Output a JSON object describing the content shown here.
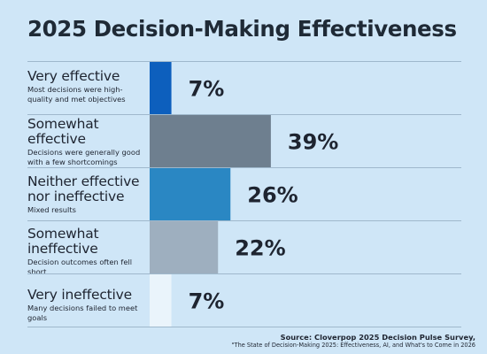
{
  "title": "2025 Decision-Making Effectiveness",
  "chart_data": {
    "type": "bar",
    "orientation": "horizontal",
    "title": "2025 Decision-Making Effectiveness",
    "categories": [
      "Very effective",
      "Somewhat effective",
      "Neither effective nor ineffective",
      "Somewhat ineffective",
      "Very ineffective"
    ],
    "descriptions": [
      "Most decisions were high-quality and met objectives",
      "Decisions were generally good with a few shortcomings",
      "Mixed results",
      "Decision outcomes often fell short",
      "Many decisions failed to meet goals"
    ],
    "values": [
      7,
      39,
      26,
      22,
      7
    ],
    "value_labels": [
      "7%",
      "39%",
      "26%",
      "22%",
      "7%"
    ],
    "colors": [
      "#0d5fbd",
      "#6e7f8f",
      "#2a87c3",
      "#9eafbf",
      "#eaf4fb"
    ],
    "grid": false,
    "legend": "none"
  },
  "source": {
    "line1": "Source: Cloverpop 2025 Decision Pulse Survey,",
    "line2": "\"The State of Decision-Making 2025: Effectiveness, AI, and What's to Come in 2026"
  }
}
